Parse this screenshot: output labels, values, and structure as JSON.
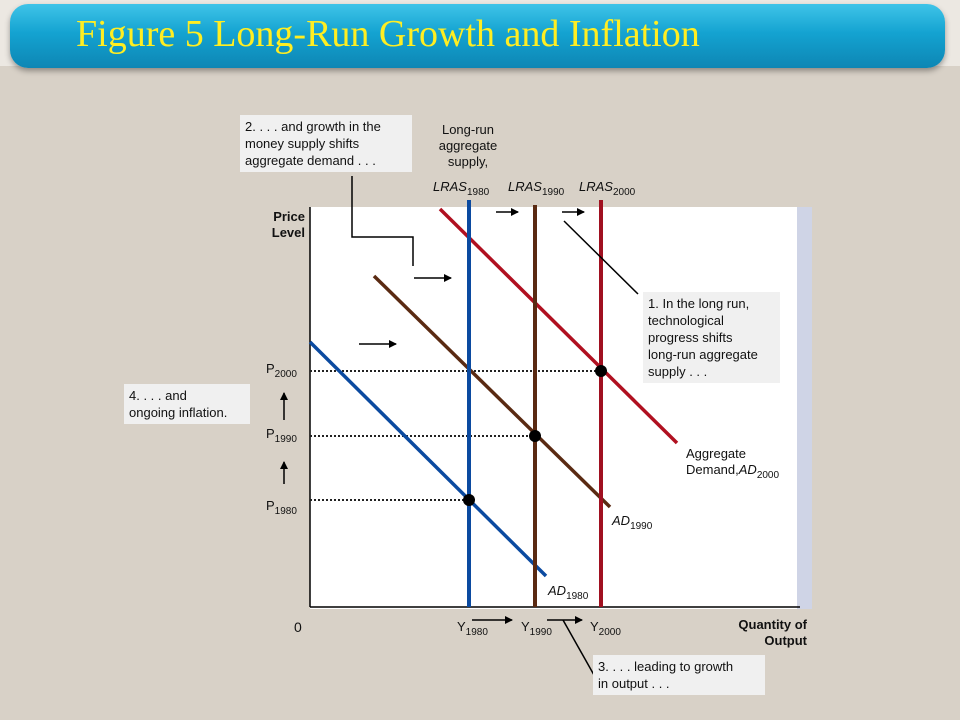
{
  "title": "Figure 5 Long-Run Growth and Inflation",
  "axes": {
    "y_label_line1": "Price",
    "y_label_line2": "Level",
    "x_label_line1": "Quantity of",
    "x_label_line2": "Output",
    "origin": "0"
  },
  "prices": {
    "p2000": {
      "base": "P",
      "sub": "2000"
    },
    "p1990": {
      "base": "P",
      "sub": "1990"
    },
    "p1980": {
      "base": "P",
      "sub": "1980"
    }
  },
  "outputs": {
    "y1980": {
      "base": "Y",
      "sub": "1980"
    },
    "y1990": {
      "base": "Y",
      "sub": "1990"
    },
    "y2000": {
      "base": "Y",
      "sub": "2000"
    }
  },
  "lras": {
    "caption_line1": "Long-run",
    "caption_line2": "aggregate",
    "caption_line3": "supply,",
    "l1980": {
      "base": "LRAS",
      "sub": "1980"
    },
    "l1990": {
      "base": "LRAS",
      "sub": "1990"
    },
    "l2000": {
      "base": "LRAS",
      "sub": "2000"
    }
  },
  "ad": {
    "ad1980": {
      "base": "AD",
      "sub": "1980"
    },
    "ad1990": {
      "base": "AD",
      "sub": "1990"
    },
    "ad2000_line1": "Aggregate",
    "ad2000_line2": "Demand,",
    "ad2000": {
      "base": "AD",
      "sub": "2000"
    }
  },
  "notes": {
    "note1": [
      "1. In the long run,",
      "technological",
      "progress shifts",
      "long-run aggregate",
      "supply . . ."
    ],
    "note2": [
      "2. . . . and growth in the",
      "money supply shifts",
      "aggregate demand . . ."
    ],
    "note3": [
      "3. . . . leading to growth",
      "in output . . ."
    ],
    "note4": [
      "4. . . . and",
      "ongoing inflation."
    ]
  },
  "colors": {
    "banner": "#14a3d1",
    "title_text": "#ffee22",
    "lras1980": "#0b4aa0",
    "lras1990": "#5a2a12",
    "lras2000": "#a01020",
    "ad1980": "#0b4aa0",
    "ad1990": "#5a2a12",
    "ad2000": "#b01020"
  }
}
